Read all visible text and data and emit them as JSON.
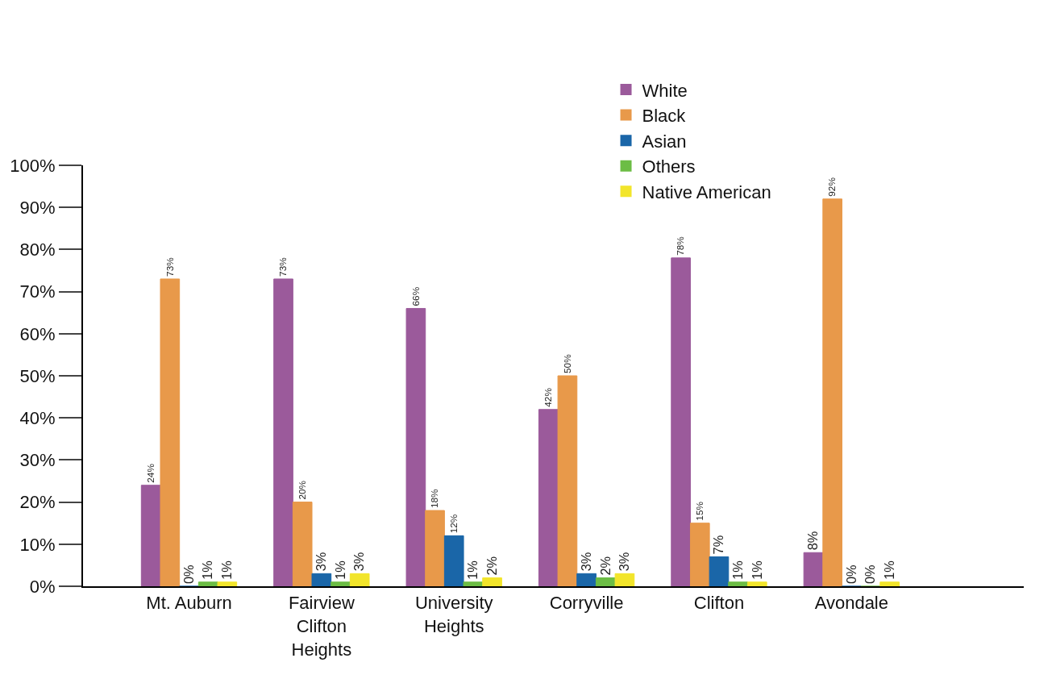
{
  "chart_data": {
    "type": "bar",
    "categories": [
      "Mt. Auburn",
      "Fairview Clifton Heights",
      "University Heights",
      "Corryville",
      "Clifton",
      "Avondale"
    ],
    "series": [
      {
        "name": "White",
        "color": "#9b5a9b",
        "values": [
          24,
          73,
          66,
          42,
          78,
          8
        ],
        "value_labels": [
          "24%",
          "73%",
          "66%",
          "42%",
          "78%",
          "8%"
        ]
      },
      {
        "name": "Black",
        "color": "#e8994a",
        "values": [
          73,
          20,
          18,
          50,
          15,
          92
        ],
        "value_labels": [
          "73%",
          "20%",
          "18%",
          "50%",
          "15%",
          "92%"
        ]
      },
      {
        "name": "Asian",
        "color": "#1a66a8",
        "values": [
          0,
          3,
          12,
          3,
          7,
          0
        ],
        "value_labels": [
          "0%",
          "3%",
          "12%",
          "3%",
          "7%",
          "0%"
        ]
      },
      {
        "name": "Others",
        "color": "#6cbd45",
        "values": [
          1,
          1,
          1,
          2,
          1,
          0
        ],
        "value_labels": [
          "1%",
          "1%",
          "1%",
          "2%",
          "1%",
          "0%"
        ]
      },
      {
        "name": "Native American",
        "color": "#f2e52b",
        "values": [
          1,
          3,
          2,
          3,
          1,
          1
        ],
        "value_labels": [
          "1%",
          "3%",
          "2%",
          "3%",
          "1%",
          "1%"
        ]
      }
    ],
    "ylim": [
      0,
      100
    ],
    "yticks": [
      {
        "value": 0,
        "label": "0%"
      },
      {
        "value": 10,
        "label": "10%"
      },
      {
        "value": 20,
        "label": "20%"
      },
      {
        "value": 30,
        "label": "30%"
      },
      {
        "value": 40,
        "label": "40%"
      },
      {
        "value": 50,
        "label": "50%"
      },
      {
        "value": 60,
        "label": "60%"
      },
      {
        "value": 70,
        "label": "70%"
      },
      {
        "value": 80,
        "label": "80%"
      },
      {
        "value": 90,
        "label": "90%"
      },
      {
        "value": 100,
        "label": "100%"
      }
    ],
    "grid": false,
    "legend": "top"
  }
}
